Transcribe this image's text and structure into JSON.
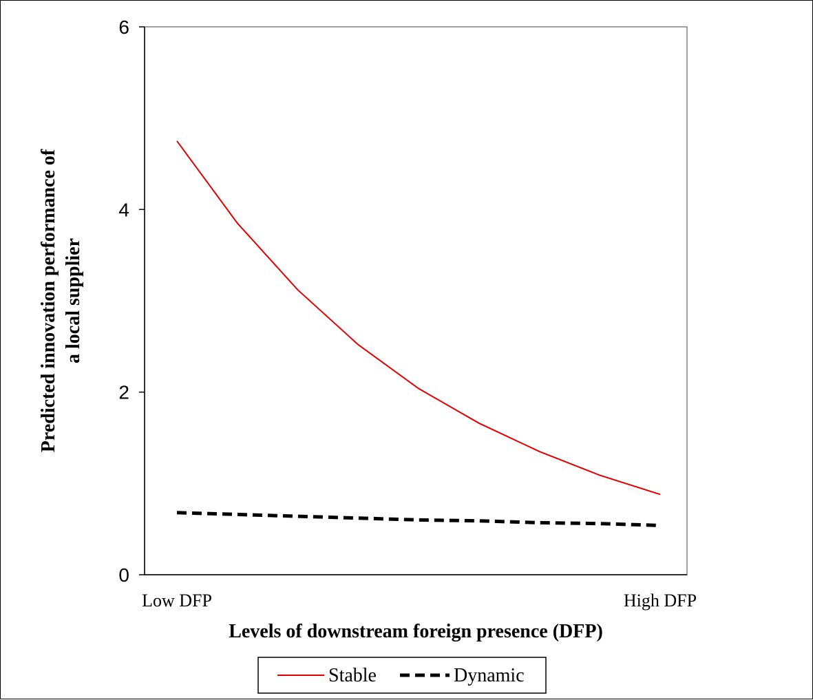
{
  "chart_data": {
    "type": "line",
    "x": [
      "Low DFP",
      "",
      "",
      "",
      "",
      "",
      "",
      "",
      "High DFP"
    ],
    "categories": [
      "Low DFP",
      "High DFP"
    ],
    "series": [
      {
        "name": "Stable",
        "color": "#e00000",
        "style": "solid",
        "values": [
          4.75,
          3.85,
          3.12,
          2.52,
          2.04,
          1.66,
          1.35,
          1.09,
          0.88
        ]
      },
      {
        "name": "Dynamic",
        "color": "#000000",
        "style": "dashed",
        "values": [
          0.68,
          0.66,
          0.64,
          0.62,
          0.6,
          0.59,
          0.57,
          0.56,
          0.54
        ]
      }
    ],
    "yticks": [
      "0",
      "2",
      "4",
      "6"
    ],
    "ylim": [
      0,
      6
    ],
    "xlabel": "Levels of downstream foreign presence (DFP)",
    "ylabel_line1": "Predicted innovation performance of",
    "ylabel_line2": "a local supplier",
    "grid": false,
    "legend_position": "bottom"
  }
}
